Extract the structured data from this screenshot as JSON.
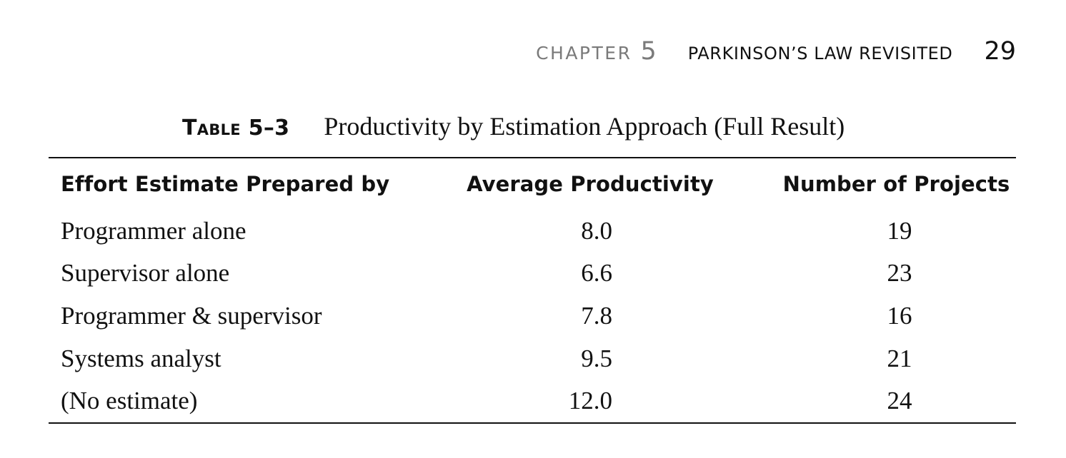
{
  "running_header": {
    "chapter_word": "CHAPTER",
    "chapter_number": "5",
    "chapter_title": "PARKINSON’S LAW REVISITED",
    "page_number": "29"
  },
  "caption": {
    "label": "Table 5–3",
    "text": "Productivity by Estimation Approach (Full Result)"
  },
  "table": {
    "headers": [
      "Effort Estimate Prepared by",
      "Average Productivity",
      "Number of Projects"
    ],
    "rows": [
      {
        "estimate_by": "Programmer alone",
        "avg_productivity": "8.0",
        "num_projects": "19"
      },
      {
        "estimate_by": "Supervisor alone",
        "avg_productivity": "6.6",
        "num_projects": "23"
      },
      {
        "estimate_by": "Programmer & supervisor",
        "avg_productivity": "7.8",
        "num_projects": "16"
      },
      {
        "estimate_by": "Systems analyst",
        "avg_productivity": "9.5",
        "num_projects": "21"
      },
      {
        "estimate_by": "(No estimate)",
        "avg_productivity": "12.0",
        "num_projects": "24"
      }
    ]
  }
}
